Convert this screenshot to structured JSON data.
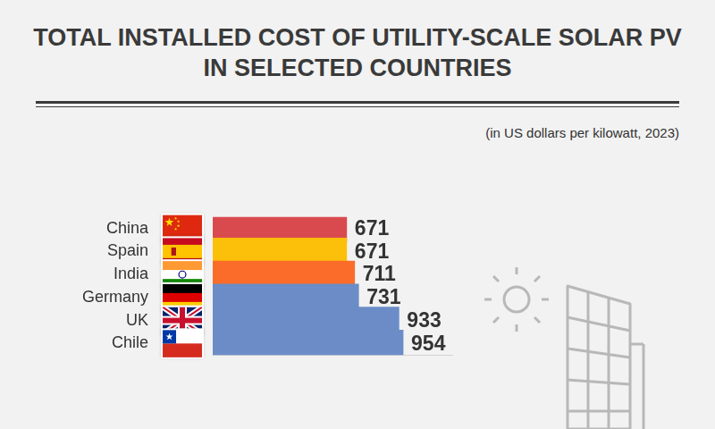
{
  "chart_data": {
    "type": "bar",
    "title": "TOTAL INSTALLED COST OF UTILITY-SCALE SOLAR PV IN SELECTED COUNTRIES",
    "subtitle": "(in US dollars per kilowatt, 2023)",
    "categories": [
      "China",
      "Spain",
      "India",
      "Germany",
      "UK",
      "Chile"
    ],
    "values": [
      671,
      671,
      711,
      731,
      933,
      954
    ],
    "colors": [
      "#d94a4f",
      "#fcc00a",
      "#fb6c2b",
      "#6b8cc7",
      "#6b8cc7",
      "#6b8cc7"
    ],
    "orientation": "horizontal",
    "data_labels": true,
    "tick_labels": "y",
    "grid": false,
    "xlim": [
      0,
      1200
    ]
  }
}
